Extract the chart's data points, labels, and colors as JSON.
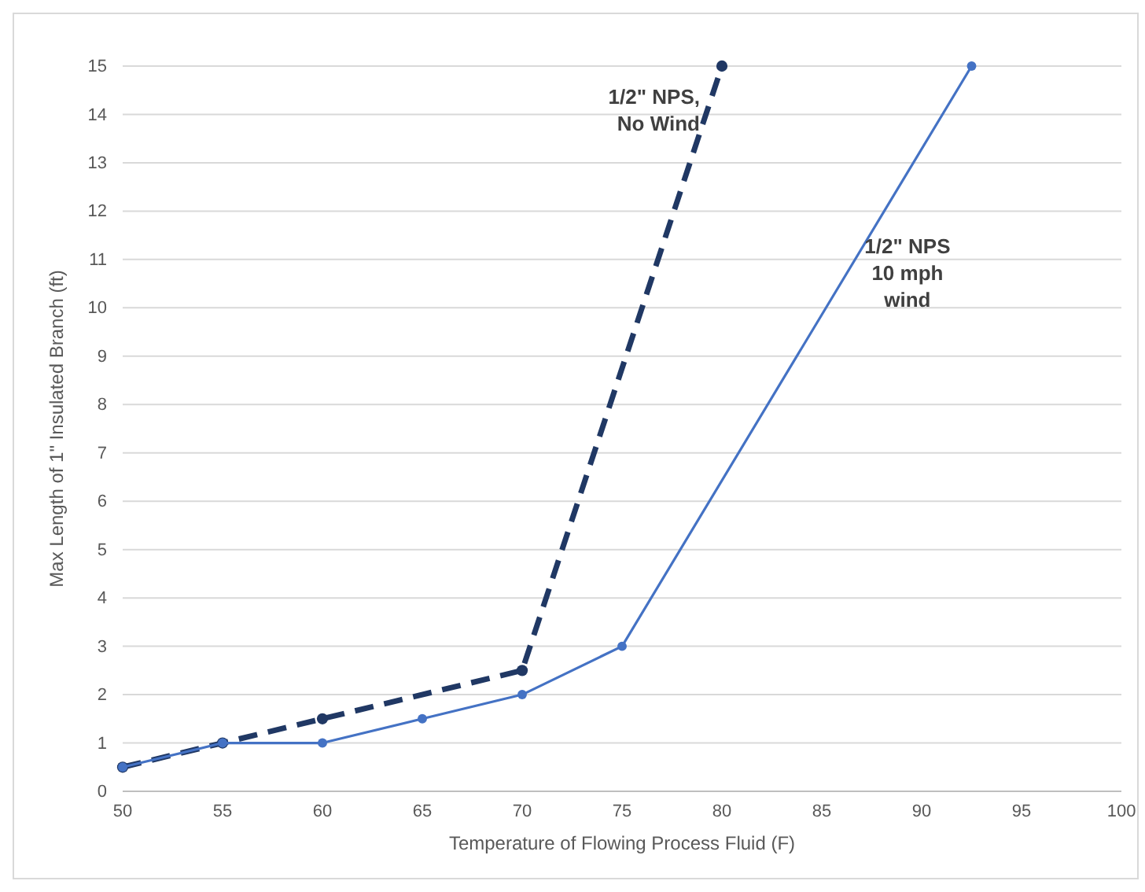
{
  "chart_data": {
    "type": "line",
    "xlabel": "Temperature  of Flowing Process Fluid (F)",
    "ylabel": "Max Length of 1\" Insulated Branch (ft)",
    "series": [
      {
        "color": "#203864",
        "line_style": "dashed",
        "x": [
          50,
          55,
          60,
          70,
          80
        ],
        "values": [
          0.5,
          1,
          1.5,
          2.5,
          15
        ]
      },
      {
        "color": "#4472c4",
        "line_style": "solid",
        "x": [
          50,
          55,
          60,
          65,
          70,
          75,
          92.5
        ],
        "values": [
          0.5,
          1,
          1,
          1.5,
          2,
          3,
          15
        ]
      }
    ],
    "xlim": [
      50,
      100
    ],
    "xticks": [
      50,
      55,
      60,
      65,
      70,
      75,
      80,
      85,
      90,
      95,
      100
    ],
    "ylim": [
      0,
      15
    ],
    "yticks": [
      0,
      1,
      2,
      3,
      4,
      5,
      6,
      7,
      8,
      9,
      10,
      11,
      12,
      13,
      14,
      15
    ],
    "grid": "y",
    "marker": "circle",
    "annotations": [
      {
        "text": "1/2\" NPS,\nNo Wind",
        "x": 80,
        "y": 15
      },
      "1/2\" NPS\n10 mph\nwind"
    ]
  }
}
